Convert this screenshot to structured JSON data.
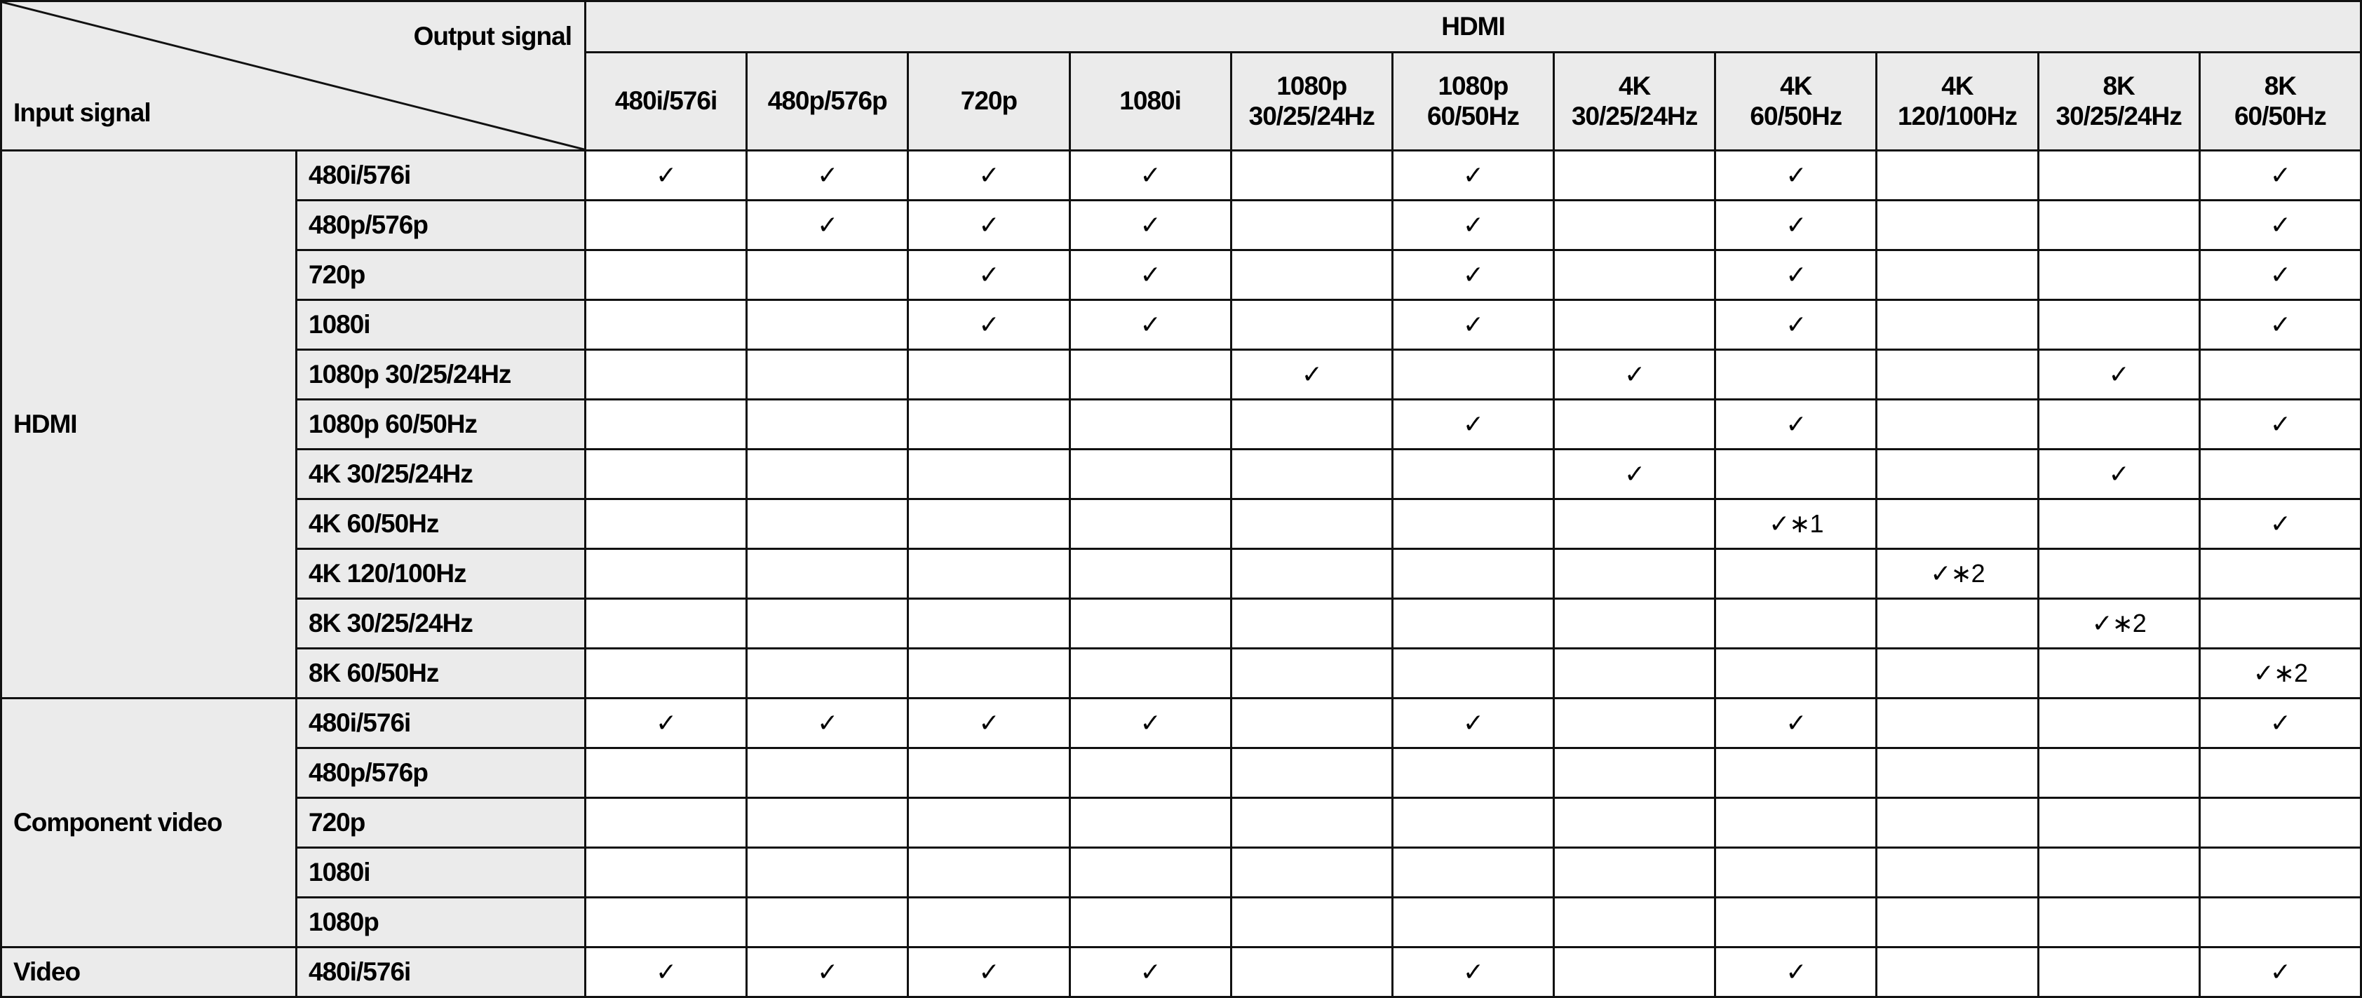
{
  "corner": {
    "output_label": "Output signal",
    "input_label": "Input signal"
  },
  "output_group": "HDMI",
  "columns": [
    "480i/576i",
    "480p/576p",
    "720p",
    "1080i",
    "1080p\n30/25/24Hz",
    "1080p\n60/50Hz",
    "4K\n30/25/24Hz",
    "4K\n60/50Hz",
    "4K\n120/100Hz",
    "8K\n30/25/24Hz",
    "8K\n60/50Hz"
  ],
  "groups": [
    {
      "label": "HDMI",
      "rows": [
        {
          "input": "480i/576i",
          "cells": [
            "✓",
            "✓",
            "✓",
            "✓",
            "",
            "✓",
            "",
            "✓",
            "",
            "",
            "✓"
          ]
        },
        {
          "input": "480p/576p",
          "cells": [
            "",
            "✓",
            "✓",
            "✓",
            "",
            "✓",
            "",
            "✓",
            "",
            "",
            "✓"
          ]
        },
        {
          "input": "720p",
          "cells": [
            "",
            "",
            "✓",
            "✓",
            "",
            "✓",
            "",
            "✓",
            "",
            "",
            "✓"
          ]
        },
        {
          "input": "1080i",
          "cells": [
            "",
            "",
            "✓",
            "✓",
            "",
            "✓",
            "",
            "✓",
            "",
            "",
            "✓"
          ]
        },
        {
          "input": "1080p 30/25/24Hz",
          "cells": [
            "",
            "",
            "",
            "",
            "✓",
            "",
            "✓",
            "",
            "",
            "✓",
            ""
          ]
        },
        {
          "input": "1080p 60/50Hz",
          "cells": [
            "",
            "",
            "",
            "",
            "",
            "✓",
            "",
            "✓",
            "",
            "",
            "✓"
          ]
        },
        {
          "input": "4K 30/25/24Hz",
          "cells": [
            "",
            "",
            "",
            "",
            "",
            "",
            "✓",
            "",
            "",
            "✓",
            ""
          ]
        },
        {
          "input": "4K 60/50Hz",
          "cells": [
            "",
            "",
            "",
            "",
            "",
            "",
            "",
            "✓∗1",
            "",
            "",
            "✓"
          ]
        },
        {
          "input": "4K 120/100Hz",
          "cells": [
            "",
            "",
            "",
            "",
            "",
            "",
            "",
            "",
            "✓∗2",
            "",
            ""
          ]
        },
        {
          "input": "8K 30/25/24Hz",
          "cells": [
            "",
            "",
            "",
            "",
            "",
            "",
            "",
            "",
            "",
            "✓∗2",
            ""
          ]
        },
        {
          "input": "8K 60/50Hz",
          "cells": [
            "",
            "",
            "",
            "",
            "",
            "",
            "",
            "",
            "",
            "",
            "✓∗2"
          ]
        }
      ]
    },
    {
      "label": "Component video",
      "rows": [
        {
          "input": "480i/576i",
          "cells": [
            "✓",
            "✓",
            "✓",
            "✓",
            "",
            "✓",
            "",
            "✓",
            "",
            "",
            "✓"
          ]
        },
        {
          "input": "480p/576p",
          "cells": [
            "",
            "",
            "",
            "",
            "",
            "",
            "",
            "",
            "",
            "",
            ""
          ]
        },
        {
          "input": "720p",
          "cells": [
            "",
            "",
            "",
            "",
            "",
            "",
            "",
            "",
            "",
            "",
            ""
          ]
        },
        {
          "input": "1080i",
          "cells": [
            "",
            "",
            "",
            "",
            "",
            "",
            "",
            "",
            "",
            "",
            ""
          ]
        },
        {
          "input": "1080p",
          "cells": [
            "",
            "",
            "",
            "",
            "",
            "",
            "",
            "",
            "",
            "",
            ""
          ]
        }
      ]
    },
    {
      "label": "Video",
      "rows": [
        {
          "input": "480i/576i",
          "cells": [
            "✓",
            "✓",
            "✓",
            "✓",
            "",
            "✓",
            "",
            "✓",
            "",
            "",
            "✓"
          ]
        }
      ]
    }
  ]
}
